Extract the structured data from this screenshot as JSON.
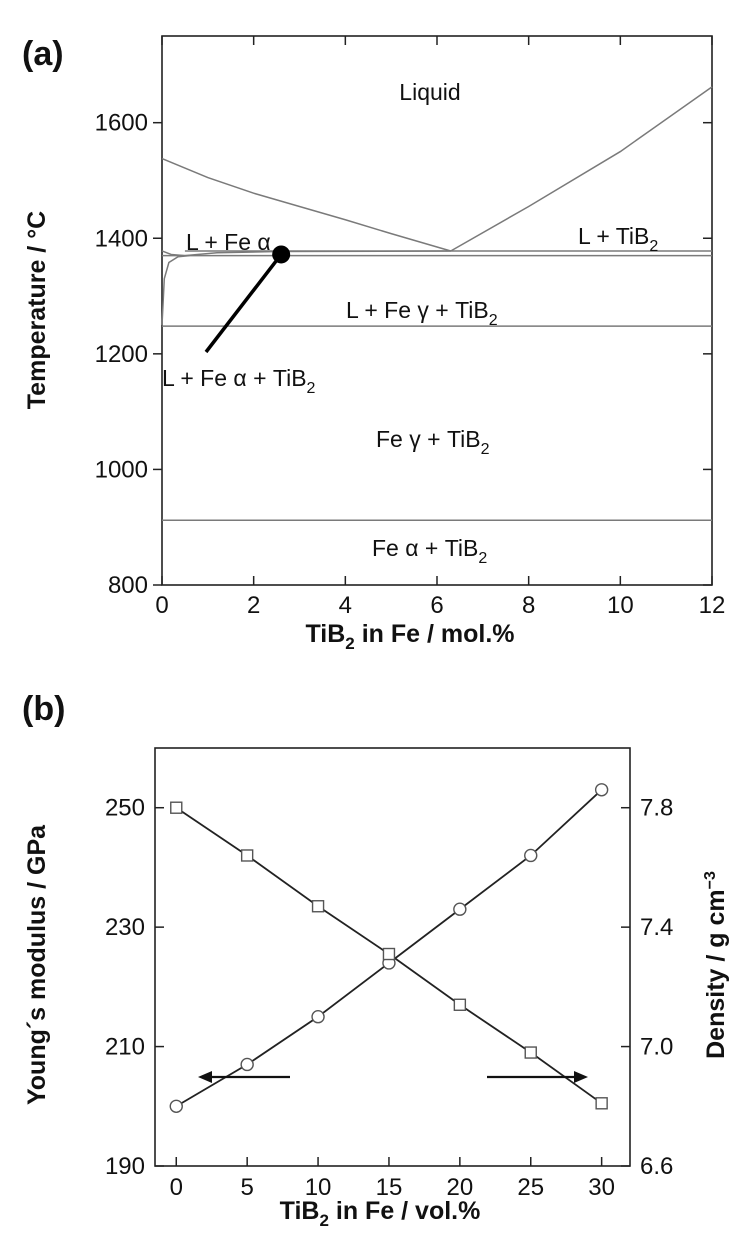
{
  "chart_data": [
    {
      "type": "line",
      "panel": "(a)",
      "xlabel_main": "TiB",
      "xlabel_sub": "2",
      "xlabel_tail": " in Fe / mol.%",
      "ylabel": "Temperature / °C",
      "xlim": [
        0,
        12
      ],
      "ylim": [
        800,
        1750
      ],
      "xticks": [
        "0",
        "2",
        "4",
        "6",
        "8",
        "10",
        "12"
      ],
      "yticks": [
        "800",
        "1000",
        "1200",
        "1400",
        "1600"
      ],
      "regions": {
        "liquid": "Liquid",
        "l_fea": "L + Fe α",
        "l_tib2_main": "L + TiB",
        "l_tib2_sub": "2",
        "l_feg_tib2_main": "L + Fe γ + TiB",
        "l_feg_tib2_sub": "2",
        "l_fea_tib2_main": "L + Fe α + TiB",
        "l_fea_tib2_sub": "2",
        "feg_tib2_main": "Fe γ + TiB",
        "feg_tib2_sub": "2",
        "fea_tib2_main": "Fe α + TiB",
        "fea_tib2_sub": "2"
      },
      "boundaries": {
        "liquidus_fe_side": [
          [
            0,
            1538
          ],
          [
            1,
            1505
          ],
          [
            2,
            1478
          ],
          [
            3,
            1455
          ],
          [
            4,
            1432
          ],
          [
            5,
            1408
          ],
          [
            6.3,
            1378
          ]
        ],
        "liquidus_tib2_side": [
          [
            6.3,
            1378
          ],
          [
            8,
            1455
          ],
          [
            10,
            1550
          ],
          [
            12,
            1662
          ]
        ],
        "upper_eutectic": [
          [
            0.5,
            1378
          ],
          [
            12,
            1378
          ]
        ],
        "lower_eutectic": [
          [
            0,
            1370
          ],
          [
            12,
            1370
          ]
        ],
        "solidus_alpha": [
          [
            0,
            1250
          ],
          [
            0.05,
            1330
          ],
          [
            0.15,
            1358
          ],
          [
            0.35,
            1368
          ],
          [
            0.6,
            1370
          ]
        ],
        "solvus_alpha": [
          [
            0,
            1378
          ],
          [
            0.2,
            1372
          ],
          [
            0.5,
            1370
          ]
        ],
        "gamma_alpha_upper_solvus": [
          [
            0.5,
            1370
          ],
          [
            1.2,
            1375
          ],
          [
            2.5,
            1377
          ],
          [
            6.3,
            1378
          ]
        ],
        "fe_gamma_solidus": [
          [
            0,
            1248
          ],
          [
            12,
            1248
          ]
        ],
        "alpha_gamma_transition": [
          [
            0,
            912
          ],
          [
            12,
            912
          ]
        ]
      },
      "pointer_dot": [
        2.6,
        1372
      ]
    },
    {
      "type": "line",
      "panel": "(b)",
      "xlabel_main": "TiB",
      "xlabel_sub": "2",
      "xlabel_tail": " in Fe / vol.%",
      "ylabel_left": "Young´s modulus / GPa",
      "ylabel_right_main": "Density / g cm",
      "ylabel_right_sup": "−3",
      "xlim": [
        -1.5,
        32
      ],
      "ylim_left": [
        190,
        260
      ],
      "ylim_right": [
        6.6,
        8.0
      ],
      "xticks": [
        "0",
        "5",
        "10",
        "15",
        "20",
        "25",
        "30"
      ],
      "yticks_left": [
        "190",
        "210",
        "230",
        "250"
      ],
      "yticks_right": [
        "6.6",
        "7.0",
        "7.4",
        "7.8"
      ],
      "x": [
        0,
        5,
        10,
        15,
        20,
        25,
        30
      ],
      "series": [
        {
          "marker": "circle",
          "axis": "left",
          "values": [
            200,
            207,
            215,
            224,
            233,
            242,
            253
          ]
        },
        {
          "marker": "square",
          "axis": "right",
          "values": [
            7.8,
            7.64,
            7.47,
            7.31,
            7.14,
            6.98,
            6.81
          ]
        }
      ]
    }
  ]
}
